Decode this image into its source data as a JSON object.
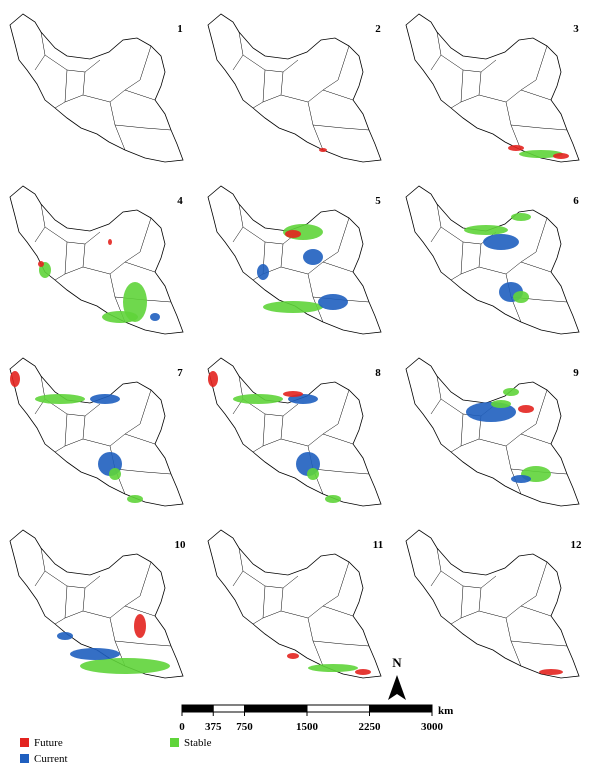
{
  "panels": [
    {
      "label": "1"
    },
    {
      "label": "2"
    },
    {
      "label": "3"
    },
    {
      "label": "4"
    },
    {
      "label": "5"
    },
    {
      "label": "6"
    },
    {
      "label": "7"
    },
    {
      "label": "8"
    },
    {
      "label": "9"
    },
    {
      "label": "10"
    },
    {
      "label": "11"
    },
    {
      "label": "12"
    }
  ],
  "scale_bar": {
    "unit": "km",
    "ticks": [
      0,
      375,
      750,
      1500,
      2250,
      3000
    ]
  },
  "north_arrow": "N",
  "legend": [
    {
      "label": "Future",
      "color": "#e3231f"
    },
    {
      "label": "Current",
      "color": "#1f5fbf"
    },
    {
      "label": "Stable",
      "color": "#5fd43a"
    }
  ]
}
